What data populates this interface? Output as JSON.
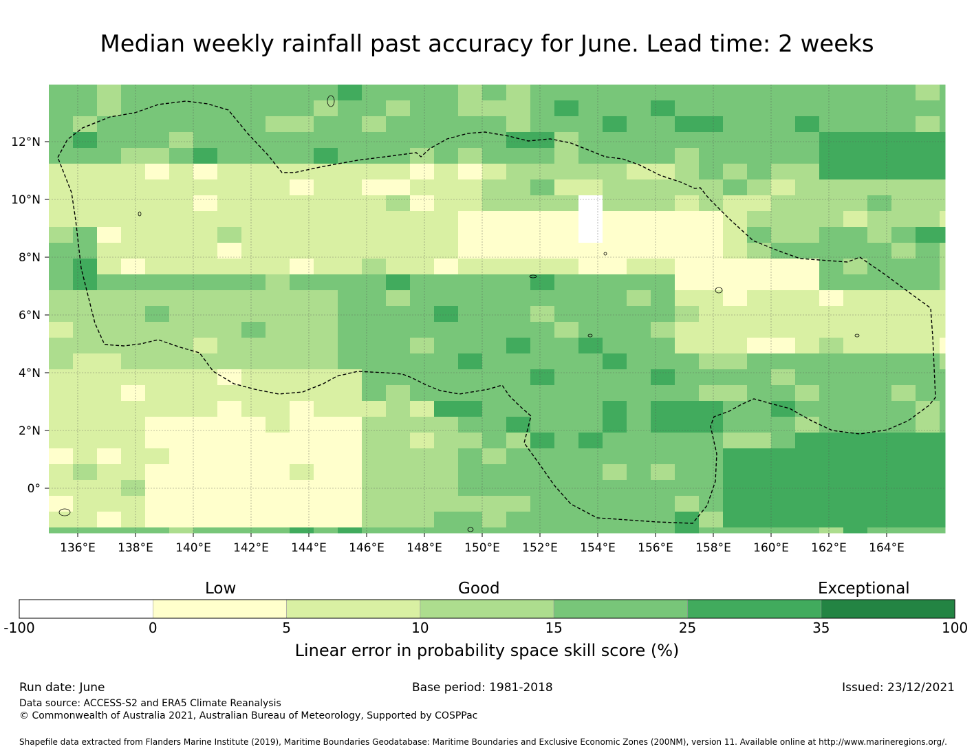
{
  "title": "Median weekly rainfall past accuracy for June. Lead time: 2 weeks",
  "map": {
    "lon_range": [
      135,
      166
    ],
    "lat_range": [
      -1.5,
      14
    ],
    "lon_ticks": [
      "136°E",
      "138°E",
      "140°E",
      "142°E",
      "144°E",
      "146°E",
      "148°E",
      "150°E",
      "152°E",
      "154°E",
      "156°E",
      "158°E",
      "160°E",
      "162°E",
      "164°E"
    ],
    "lat_ticks": [
      "12°N",
      "10°N",
      "8°N",
      "6°N",
      "4°N",
      "2°N",
      "0°"
    ],
    "grid": "dotted",
    "boundary": "dashed Exclusive Economic Zone outline (Federated States of Micronesia)",
    "field": "skill score grid, mostly 10–25% in the north and east, lower (0–10%) across the south-west and a central band near 8°N, 25–35% in the east near 158–166°E"
  },
  "colorbar": {
    "categories": [
      {
        "label": "Low",
        "center_value": "0–5"
      },
      {
        "label": "Good",
        "center_value": "10–15"
      },
      {
        "label": "Exceptional",
        "center_value": "35–100"
      }
    ],
    "boundaries": [
      "-100",
      "0",
      "5",
      "10",
      "15",
      "25",
      "35",
      "100"
    ],
    "colors": [
      "#ffffff",
      "#ffffcc",
      "#d9f0a3",
      "#addd8e",
      "#78c679",
      "#41ab5d",
      "#238443"
    ],
    "label": "Linear error in probability space skill score (%)"
  },
  "footer": {
    "run_date": "Run date: June",
    "base_period": "Base period: 1981-2018",
    "issued": "Issued: 23/12/2021",
    "data_source": "Data source: ACCESS-S2 and ERA5 Climate Reanalysis",
    "copyright": "© Commonwealth of Australia 2021, Australian Bureau of Meteorology, Supported by COSPPac",
    "shapefile": "Shapefile data extracted from Flanders Marine Institute (2019), Maritime Boundaries Geodatabase: Maritime Boundaries and Exclusive Economic Zones (200NM), version 11. Available online at http://www.marineregions.org/."
  }
}
